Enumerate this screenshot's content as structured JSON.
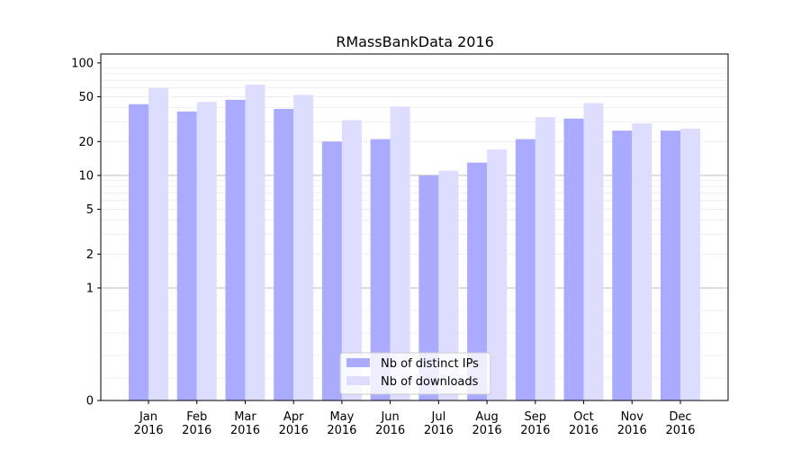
{
  "chart_data": {
    "type": "bar",
    "title": "RMassBankData 2016",
    "xlabel": "",
    "ylabel": "",
    "y_scale": "symlog",
    "ylim": [
      0,
      120
    ],
    "y_ticks": [
      0,
      1,
      2,
      5,
      10,
      20,
      50,
      100
    ],
    "categories": [
      [
        "Jan",
        "2016"
      ],
      [
        "Feb",
        "2016"
      ],
      [
        "Mar",
        "2016"
      ],
      [
        "Apr",
        "2016"
      ],
      [
        "May",
        "2016"
      ],
      [
        "Jun",
        "2016"
      ],
      [
        "Jul",
        "2016"
      ],
      [
        "Aug",
        "2016"
      ],
      [
        "Sep",
        "2016"
      ],
      [
        "Oct",
        "2016"
      ],
      [
        "Nov",
        "2016"
      ],
      [
        "Dec",
        "2016"
      ]
    ],
    "series": [
      {
        "name": "Nb of distinct IPs",
        "color": "#aaaaff",
        "values": [
          43,
          37,
          47,
          39,
          20,
          21,
          10,
          13,
          21,
          32,
          25,
          25
        ]
      },
      {
        "name": "Nb of downloads",
        "color": "#ddddff",
        "values": [
          60,
          45,
          64,
          52,
          31,
          41,
          11,
          17,
          33,
          44,
          29,
          26
        ]
      }
    ],
    "legend_position": "lower-center",
    "grid": {
      "major_lines": [
        1,
        10
      ],
      "minor_lines": true
    }
  }
}
